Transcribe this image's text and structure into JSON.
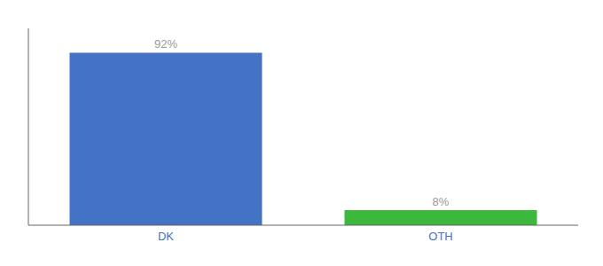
{
  "chart_data": {
    "type": "bar",
    "categories": [
      "DK",
      "OTH"
    ],
    "values": [
      92,
      8
    ],
    "value_labels": [
      "92%",
      "8%"
    ],
    "colors": [
      "#4472c4",
      "#3cb83c"
    ],
    "ylim": [
      0,
      105
    ],
    "data_labels": true,
    "tick_labels": "x"
  }
}
